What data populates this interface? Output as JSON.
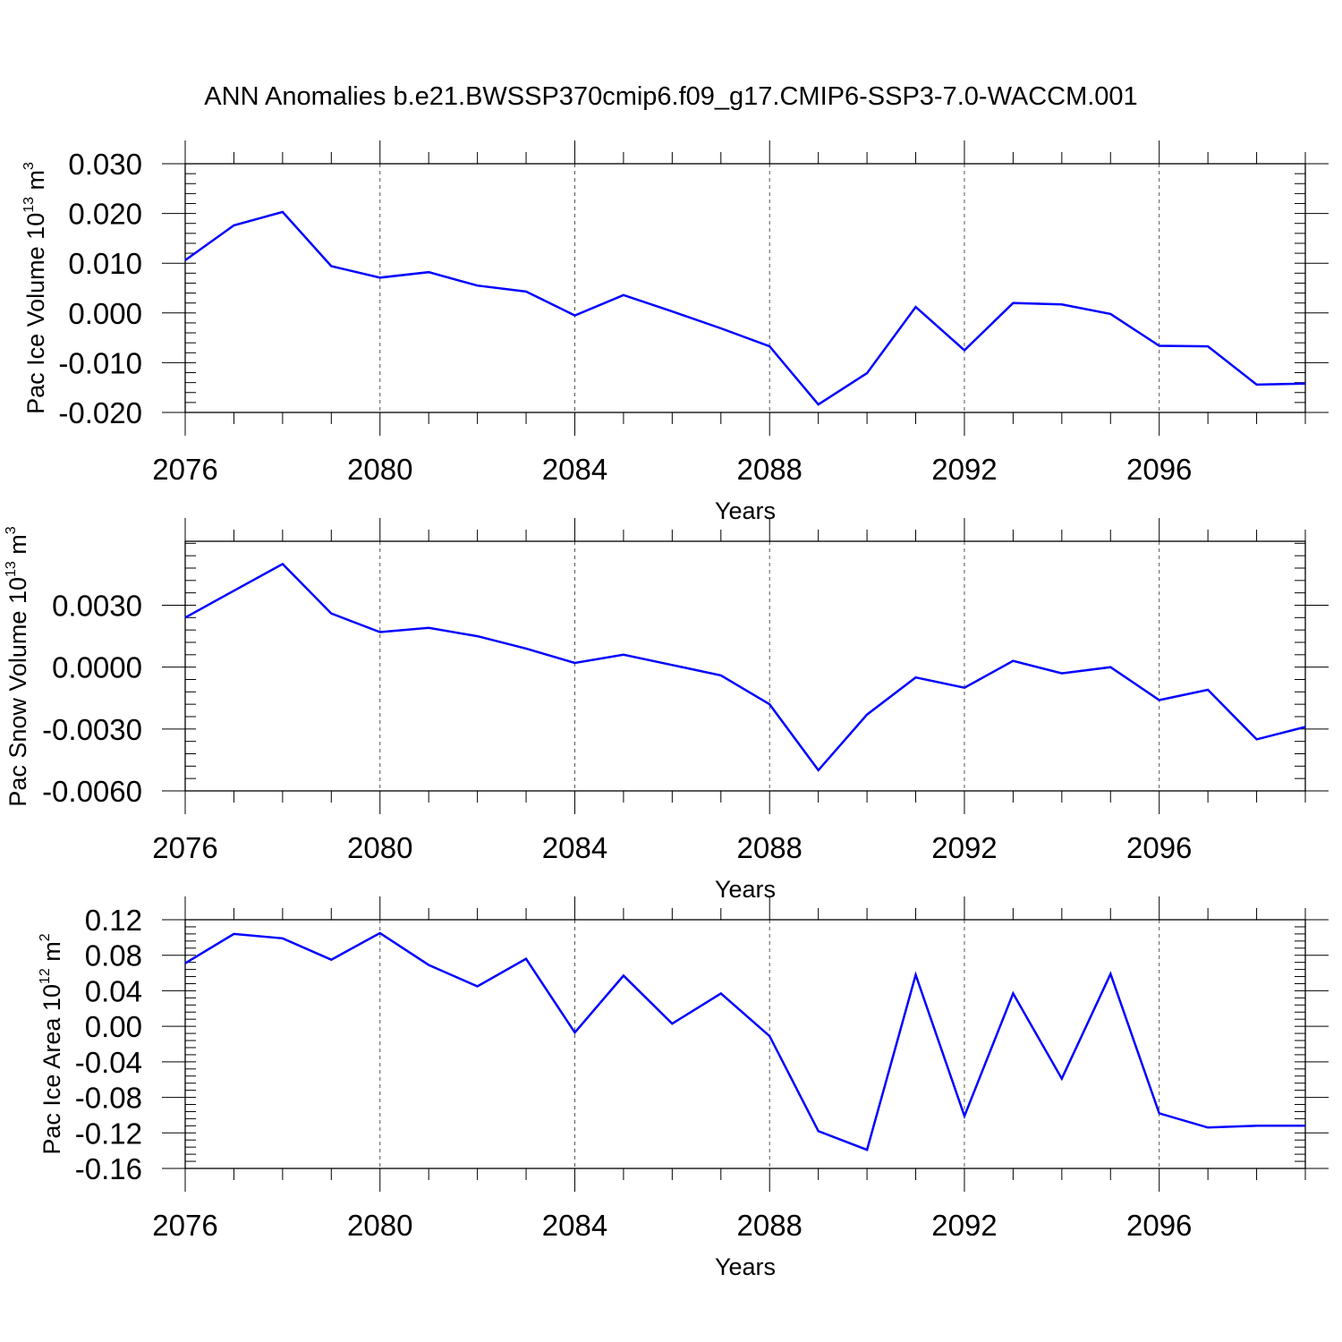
{
  "title": "ANN Anomalies b.e21.BWSSP370cmip6.f09_g17.CMIP6-SSP3-7.0-WACCM.001",
  "colors": {
    "series": "#0000ff",
    "axis": "#000000",
    "grid": "#555555"
  },
  "chart_data": [
    {
      "type": "line",
      "ylabel": {
        "main": "Pac Ice Volume 10",
        "exp": "13",
        "unit": " m",
        "unit_exp": "3"
      },
      "xlabel": "Years",
      "xlim": [
        2076,
        2099
      ],
      "ylim": [
        -0.02,
        0.03
      ],
      "xticks": [
        2076,
        2080,
        2084,
        2088,
        2092,
        2096
      ],
      "yticks": [
        -0.02,
        -0.01,
        0.0,
        0.01,
        0.02,
        0.03
      ],
      "ytick_labels": [
        "-0.020",
        "-0.010",
        "0.000",
        "0.010",
        "0.020",
        "0.030"
      ],
      "y_minor_step": 0.002,
      "grid": "vertical dashed at major x ticks",
      "series": [
        {
          "name": "Pac Ice Volume",
          "x": [
            2076,
            2077,
            2078,
            2079,
            2080,
            2081,
            2082,
            2083,
            2084,
            2085,
            2086,
            2087,
            2088,
            2089,
            2090,
            2091,
            2092,
            2093,
            2094,
            2095,
            2096,
            2097,
            2098,
            2099
          ],
          "values": [
            0.0106,
            0.0176,
            0.0203,
            0.0094,
            0.0071,
            0.0082,
            0.0055,
            0.0043,
            -0.0005,
            0.0036,
            0.0003,
            -0.0031,
            -0.0067,
            -0.0184,
            -0.0121,
            0.0012,
            -0.0075,
            0.002,
            0.0017,
            -0.0002,
            -0.0066,
            -0.0067,
            -0.0144,
            -0.0142
          ]
        }
      ]
    },
    {
      "type": "line",
      "ylabel": {
        "main": "Pac Snow Volume 10",
        "exp": "13",
        "unit": " m",
        "unit_exp": "3"
      },
      "xlabel": "Years",
      "xlim": [
        2076,
        2099
      ],
      "ylim": [
        -0.006,
        0.0061
      ],
      "xticks": [
        2076,
        2080,
        2084,
        2088,
        2092,
        2096
      ],
      "yticks": [
        -0.006,
        -0.003,
        0.0,
        0.003
      ],
      "ytick_labels": [
        "-0.0060",
        "-0.0030",
        "0.0000",
        "0.0030"
      ],
      "y_minor_step": 0.0006,
      "grid": "vertical dashed at major x ticks",
      "series": [
        {
          "name": "Pac Snow Volume",
          "x": [
            2076,
            2077,
            2078,
            2079,
            2080,
            2081,
            2082,
            2083,
            2084,
            2085,
            2086,
            2087,
            2088,
            2089,
            2090,
            2091,
            2092,
            2093,
            2094,
            2095,
            2096,
            2097,
            2098,
            2099
          ],
          "values": [
            0.0024,
            0.0037,
            0.005,
            0.0026,
            0.0017,
            0.0019,
            0.0015,
            0.0009,
            0.0002,
            0.0006,
            0.0001,
            -0.0004,
            -0.0018,
            -0.005,
            -0.0023,
            -0.0005,
            -0.001,
            0.0003,
            -0.0003,
            0.0,
            -0.0016,
            -0.0011,
            -0.0035,
            -0.0029
          ]
        }
      ]
    },
    {
      "type": "line",
      "ylabel": {
        "main": "Pac Ice Area 10",
        "exp": "12",
        "unit": " m",
        "unit_exp": "2"
      },
      "xlabel": "Years",
      "xlim": [
        2076,
        2099
      ],
      "ylim": [
        -0.16,
        0.12
      ],
      "xticks": [
        2076,
        2080,
        2084,
        2088,
        2092,
        2096
      ],
      "yticks": [
        -0.16,
        -0.12,
        -0.08,
        -0.04,
        0.0,
        0.04,
        0.08,
        0.12
      ],
      "ytick_labels": [
        "-0.16",
        "-0.12",
        "-0.08",
        "-0.04",
        "0.00",
        "0.04",
        "0.08",
        "0.12"
      ],
      "y_minor_step": 0.008,
      "grid": "vertical dashed at major x ticks",
      "series": [
        {
          "name": "Pac Ice Area",
          "x": [
            2076,
            2077,
            2078,
            2079,
            2080,
            2081,
            2082,
            2083,
            2084,
            2085,
            2086,
            2087,
            2088,
            2089,
            2090,
            2091,
            2092,
            2093,
            2094,
            2095,
            2096,
            2097,
            2098,
            2099
          ],
          "values": [
            0.071,
            0.104,
            0.099,
            0.075,
            0.105,
            0.069,
            0.045,
            0.076,
            -0.007,
            0.057,
            0.003,
            0.037,
            -0.011,
            -0.118,
            -0.139,
            0.058,
            -0.101,
            0.037,
            -0.059,
            0.059,
            -0.098,
            -0.114,
            -0.112,
            -0.112
          ]
        }
      ]
    }
  ]
}
